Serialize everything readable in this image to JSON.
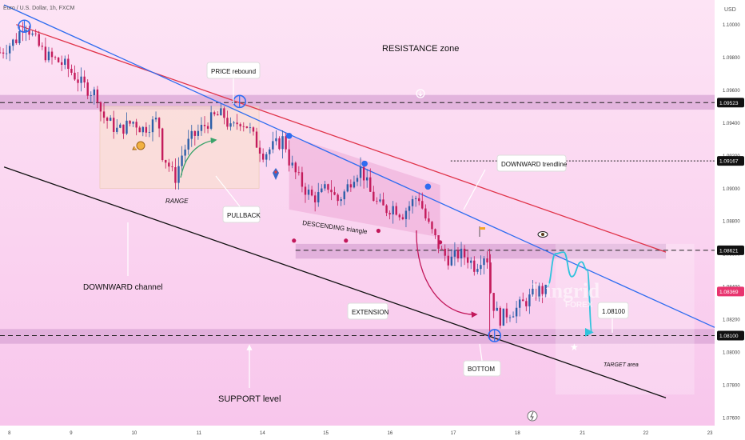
{
  "header": {
    "symbol_title": "Euro / U.S. Dollar, 1h, FXCM",
    "currency": "USD"
  },
  "colors": {
    "bg_top": "#fde4f5",
    "bg_bottom": "#f8c6ec",
    "up": "#2d5fa8",
    "down": "#c41c5c",
    "blue_line": "#2e6cf0",
    "red_line": "#e0344a",
    "zone": "#d9a6d6",
    "teal": "#2fc3dc"
  },
  "icons": [
    "snail-icon",
    "rocket-icon",
    "eye-icon",
    "star-icon",
    "lightning-icon",
    "arrow-down-circle-icon",
    "flag-icon"
  ],
  "annotations": {
    "resistance": "RESISTANCE zone",
    "price_rebound": "PRICE rebound",
    "range": "RANGE",
    "pullback": "PULLBACK",
    "descending": "DESCENDING triangle",
    "downward_trendline": "DOWNWARD trendline",
    "downward_channel": "DOWNWARD channel",
    "extension": "EXTENSION",
    "bottom": "BOTTOM",
    "support": "SUPPORT level",
    "target": "TARGET area",
    "target_price": "1.08100",
    "watermark_main": "Lingrid",
    "watermark_sub": "FOREX"
  },
  "chart_data": {
    "type": "candlestick",
    "title": "Euro / U.S. Dollar, 1h, FXCM",
    "y_unit": "USD",
    "ylim": [
      1.0755,
      1.1015
    ],
    "y_ticks": [
      1.1,
      1.098,
      1.096,
      1.094,
      1.092,
      1.09,
      1.088,
      1.086,
      1.084,
      1.082,
      1.08,
      1.078,
      1.076
    ],
    "y_tick_labels": [
      "1.10000",
      "1.09800",
      "1.09600",
      "1.09400",
      "1.09200",
      "1.09000",
      "1.08800",
      "1.08600",
      "1.08400",
      "1.08200",
      "1.08000",
      "1.07800",
      "1.07600"
    ],
    "x_tick_labels": [
      "8",
      "9",
      "10",
      "11",
      "14",
      "15",
      "16",
      "17",
      "18",
      "21",
      "22",
      "23"
    ],
    "x_tick_pos": [
      0.5,
      8.1,
      15.7,
      23.7,
      31.5,
      39.3,
      47.2,
      55.0,
      62.9,
      70.9,
      78.7,
      86.6
    ],
    "price_labels": [
      {
        "value": 1.09523,
        "text": "1.09523",
        "style": "dark"
      },
      {
        "value": 1.09167,
        "text": "1.09167",
        "style": "dark"
      },
      {
        "value": 1.08621,
        "text": "1.08621",
        "style": "dark"
      },
      {
        "value": 1.08369,
        "text": "1.08369",
        "style": "pink"
      },
      {
        "value": 1.081,
        "text": "1.08100",
        "style": "dark"
      }
    ],
    "resistance_zone": [
      1.0948,
      1.0957
    ],
    "mid_zone": [
      1.0857,
      1.0866
    ],
    "support_zone": [
      1.0805,
      1.0814
    ],
    "blue_trendline": [
      [
        0.5,
        1.1012
      ],
      [
        88.0,
        1.0815
      ]
    ],
    "red_trendline": [
      [
        2.0,
        1.1
      ],
      [
        82.0,
        1.0861
      ]
    ],
    "channel_support": [
      [
        0.5,
        1.0913
      ],
      [
        82.0,
        1.0772
      ]
    ],
    "close_path": [
      [
        0.0,
        1.0983
      ],
      [
        1.0,
        1.0987
      ],
      [
        2.0,
        1.0991
      ],
      [
        3.0,
        1.1002
      ],
      [
        4.0,
        1.0993
      ],
      [
        5.0,
        1.0985
      ],
      [
        6.0,
        1.098
      ],
      [
        7.0,
        1.0978
      ],
      [
        8.0,
        1.0975
      ],
      [
        9.0,
        1.097
      ],
      [
        10.0,
        1.0964
      ],
      [
        11.0,
        1.096
      ],
      [
        12.0,
        1.0957
      ],
      [
        12.5,
        1.0945
      ],
      [
        13.5,
        1.094
      ],
      [
        14.5,
        1.0935
      ],
      [
        15.5,
        1.0938
      ],
      [
        16.5,
        1.0941
      ],
      [
        17.5,
        1.0936
      ],
      [
        18.5,
        1.0939
      ],
      [
        19.5,
        1.0942
      ],
      [
        20.0,
        1.0921
      ],
      [
        21.0,
        1.0912
      ],
      [
        21.5,
        1.0905
      ],
      [
        22.5,
        1.0922
      ],
      [
        23.5,
        1.093
      ],
      [
        24.5,
        1.0935
      ],
      [
        25.5,
        1.094
      ],
      [
        26.5,
        1.0944
      ],
      [
        27.5,
        1.0945
      ],
      [
        28.5,
        1.0935
      ],
      [
        29.5,
        1.0942
      ],
      [
        30.5,
        1.0938
      ],
      [
        31.5,
        1.0928
      ],
      [
        32.5,
        1.0921
      ],
      [
        33.5,
        1.0925
      ],
      [
        34.5,
        1.0928
      ],
      [
        35.0,
        1.0931
      ],
      [
        35.5,
        1.0918
      ],
      [
        36.5,
        1.0908
      ],
      [
        37.5,
        1.09
      ],
      [
        38.5,
        1.0894
      ],
      [
        39.5,
        1.0896
      ],
      [
        40.5,
        1.0902
      ],
      [
        41.5,
        1.0892
      ],
      [
        42.5,
        1.0898
      ],
      [
        43.5,
        1.0908
      ],
      [
        44.5,
        1.0912
      ],
      [
        45.5,
        1.0898
      ],
      [
        46.5,
        1.089
      ],
      [
        47.5,
        1.0887
      ],
      [
        48.5,
        1.0889
      ],
      [
        49.5,
        1.0884
      ],
      [
        50.5,
        1.089
      ],
      [
        51.5,
        1.0896
      ],
      [
        52.5,
        1.088
      ],
      [
        53.5,
        1.087
      ],
      [
        54.5,
        1.086
      ],
      [
        55.5,
        1.0856
      ],
      [
        56.5,
        1.086
      ],
      [
        57.5,
        1.0858
      ],
      [
        58.5,
        1.0852
      ],
      [
        59.5,
        1.086
      ],
      [
        60.0,
        1.0857
      ],
      [
        60.5,
        1.0832
      ],
      [
        61.0,
        1.0826
      ],
      [
        61.5,
        1.082
      ],
      [
        62.5,
        1.0824
      ],
      [
        63.5,
        1.0826
      ],
      [
        64.5,
        1.083
      ],
      [
        65.5,
        1.0834
      ],
      [
        66.5,
        1.0838
      ],
      [
        67.2,
        1.0837
      ]
    ],
    "forecast_path": [
      [
        67.4,
        1.084
      ],
      [
        68.4,
        1.086
      ],
      [
        69.4,
        1.0861
      ],
      [
        70.4,
        1.0846
      ],
      [
        71.6,
        1.0855
      ],
      [
        72.3,
        1.085
      ],
      [
        72.9,
        1.0812
      ]
    ],
    "markers_circle": [
      [
        3.0,
        1.0999
      ],
      [
        29.5,
        1.0953
      ],
      [
        60.9,
        1.081
      ]
    ],
    "markers_dot": [
      [
        35.6,
        1.0932
      ],
      [
        44.9,
        1.0915
      ],
      [
        52.7,
        1.0901
      ]
    ],
    "markers_small": [
      [
        36.2,
        1.0868
      ],
      [
        42.6,
        1.0868
      ],
      [
        46.6,
        1.0874
      ],
      [
        54.2,
        1.0867
      ]
    ]
  }
}
